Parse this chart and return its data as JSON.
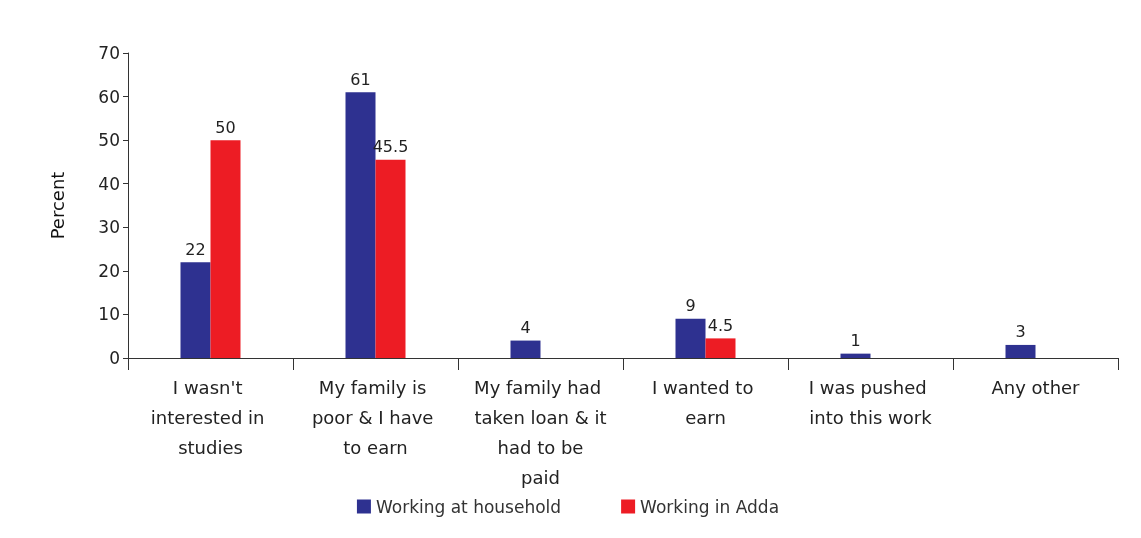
{
  "chart_data": {
    "type": "bar",
    "ylabel": "Percent",
    "categories": [
      "I wasn't interested in studies",
      "My family is poor & I have to earn",
      "My family had taken loan & it had to be paid",
      "I wanted to earn",
      "I was pushed into this work",
      "Any other"
    ],
    "series": [
      {
        "name": "Working at household",
        "color": "#2e3190",
        "values": [
          22,
          61,
          4,
          9,
          1,
          3
        ]
      },
      {
        "name": "Working in Adda",
        "color": "#ed1c24",
        "values": [
          50,
          45.5,
          null,
          4.5,
          null,
          null
        ]
      }
    ],
    "ylim": [
      0,
      70
    ],
    "yticks": [
      0,
      10,
      20,
      30,
      40,
      50,
      60,
      70
    ],
    "grid": false,
    "legend": "bottom",
    "data_labels": true
  }
}
